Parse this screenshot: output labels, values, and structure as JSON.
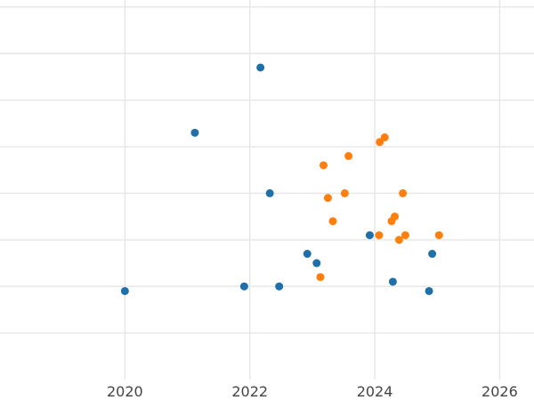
{
  "chart_data": {
    "type": "scatter",
    "title": "",
    "xlabel": "",
    "ylabel": "",
    "xlim": [
      2018.0,
      2026.55
    ],
    "ylim": [
      0,
      8.15
    ],
    "x_ticks": [
      2020,
      2022,
      2024,
      2026
    ],
    "x_tick_labels": [
      "2020",
      "2022",
      "2024",
      "2026"
    ],
    "y_gridlines": [
      1,
      2,
      3,
      4,
      5,
      6,
      7,
      8
    ],
    "y_tick_labels_shown": false,
    "grid": true,
    "legend": "none",
    "series": [
      {
        "color": "#1f6fa8",
        "points": [
          {
            "x": 2020.0,
            "y": 1.9
          },
          {
            "x": 2021.12,
            "y": 5.3
          },
          {
            "x": 2021.91,
            "y": 2.0
          },
          {
            "x": 2022.17,
            "y": 6.7
          },
          {
            "x": 2022.32,
            "y": 4.0
          },
          {
            "x": 2022.47,
            "y": 2.0
          },
          {
            "x": 2022.92,
            "y": 2.7
          },
          {
            "x": 2023.07,
            "y": 2.5
          },
          {
            "x": 2023.92,
            "y": 3.1
          },
          {
            "x": 2024.29,
            "y": 2.1
          },
          {
            "x": 2024.87,
            "y": 1.9
          },
          {
            "x": 2024.92,
            "y": 2.7
          }
        ]
      },
      {
        "color": "#ff7f0e",
        "points": [
          {
            "x": 2023.13,
            "y": 2.2
          },
          {
            "x": 2023.18,
            "y": 4.6
          },
          {
            "x": 2023.25,
            "y": 3.9
          },
          {
            "x": 2023.33,
            "y": 3.4
          },
          {
            "x": 2023.52,
            "y": 4.0
          },
          {
            "x": 2023.58,
            "y": 4.8
          },
          {
            "x": 2024.07,
            "y": 3.1
          },
          {
            "x": 2024.08,
            "y": 5.1
          },
          {
            "x": 2024.16,
            "y": 5.2
          },
          {
            "x": 2024.27,
            "y": 3.4
          },
          {
            "x": 2024.32,
            "y": 3.5
          },
          {
            "x": 2024.39,
            "y": 3.0
          },
          {
            "x": 2024.45,
            "y": 4.0
          },
          {
            "x": 2024.49,
            "y": 3.1
          },
          {
            "x": 2025.03,
            "y": 3.1
          }
        ]
      }
    ]
  }
}
